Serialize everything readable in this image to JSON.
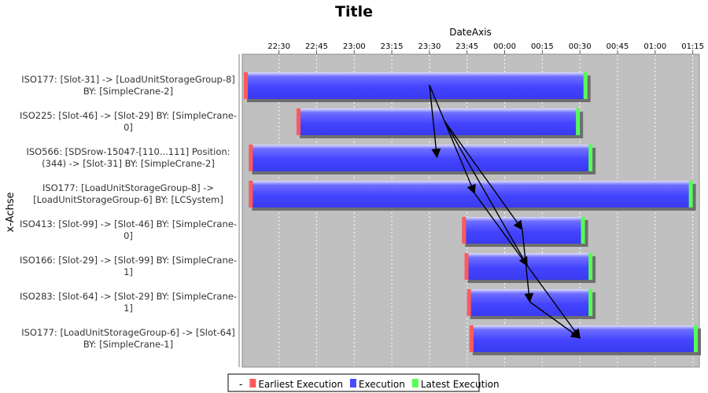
{
  "chart_data": {
    "type": "gantt",
    "title": "Title",
    "xlabel": "DateAxis",
    "ylabel": "x-Achse",
    "x_range": [
      "22:16",
      "01:17"
    ],
    "x_ticks": [
      "22:30",
      "22:45",
      "23:00",
      "23:15",
      "23:30",
      "23:45",
      "00:00",
      "00:15",
      "00:30",
      "00:45",
      "01:00",
      "01:15"
    ],
    "grid": true,
    "legend_position": "bottom",
    "legend": [
      {
        "label": "-",
        "color": ""
      },
      {
        "label": "Earliest Execution",
        "color": "#ff5a5a"
      },
      {
        "label": "Execution",
        "color": "#4a4aff"
      },
      {
        "label": "Latest Execution",
        "color": "#55ff55"
      }
    ],
    "tasks": [
      {
        "label_lines": [
          "ISO177: [Slot-31] -> [LoadUnitStorageGroup-8]",
          "BY: [SimpleCrane-2]"
        ],
        "start": "22:16",
        "end": "00:33"
      },
      {
        "label_lines": [
          "ISO225: [Slot-46] -> [Slot-29] BY: [SimpleCrane-",
          "0]"
        ],
        "start": "22:37",
        "end": "00:30"
      },
      {
        "label_lines": [
          "ISO566: [SDSrow-15047-[110...111]  Position:",
          "(344) -> [Slot-31] BY: [SimpleCrane-2]"
        ],
        "start": "22:18",
        "end": "00:35"
      },
      {
        "label_lines": [
          "ISO177: [LoadUnitStorageGroup-8] ->",
          "[LoadUnitStorageGroup-6] BY: [LCSystem]"
        ],
        "start": "22:18",
        "end": "01:15"
      },
      {
        "label_lines": [
          "ISO413: [Slot-99] -> [Slot-46] BY: [SimpleCrane-",
          "0]"
        ],
        "start": "23:43",
        "end": "00:32"
      },
      {
        "label_lines": [
          "ISO166: [Slot-29] -> [Slot-99] BY: [SimpleCrane-",
          "1]"
        ],
        "start": "23:44",
        "end": "00:35"
      },
      {
        "label_lines": [
          "ISO283: [Slot-64] -> [Slot-29] BY: [SimpleCrane-",
          "1]"
        ],
        "start": "23:45",
        "end": "00:35"
      },
      {
        "label_lines": [
          "ISO177: [LoadUnitStorageGroup-6] -> [Slot-64]",
          "BY: [SimpleCrane-1]"
        ],
        "start": "23:46",
        "end": "01:17"
      }
    ],
    "dependencies": [
      {
        "from": {
          "row": 0,
          "time": "23:30"
        },
        "to": {
          "row": 2,
          "time": "23:33"
        }
      },
      {
        "from": {
          "row": 0,
          "time": "23:30"
        },
        "to": {
          "row": 3,
          "time": "23:48"
        }
      },
      {
        "from": {
          "row": 1,
          "time": "23:36"
        },
        "to": {
          "row": 4,
          "time": "00:07"
        }
      },
      {
        "from": {
          "row": 1,
          "time": "23:36"
        },
        "to": {
          "row": 5,
          "time": "00:09"
        }
      },
      {
        "from": {
          "row": 3,
          "time": "23:48"
        },
        "to": {
          "row": 7,
          "time": "00:30"
        }
      },
      {
        "from": {
          "row": 4,
          "time": "00:07"
        },
        "to": {
          "row": 6,
          "time": "00:10"
        }
      },
      {
        "from": {
          "row": 6,
          "time": "00:10"
        },
        "to": {
          "row": 7,
          "time": "00:30"
        }
      }
    ]
  }
}
